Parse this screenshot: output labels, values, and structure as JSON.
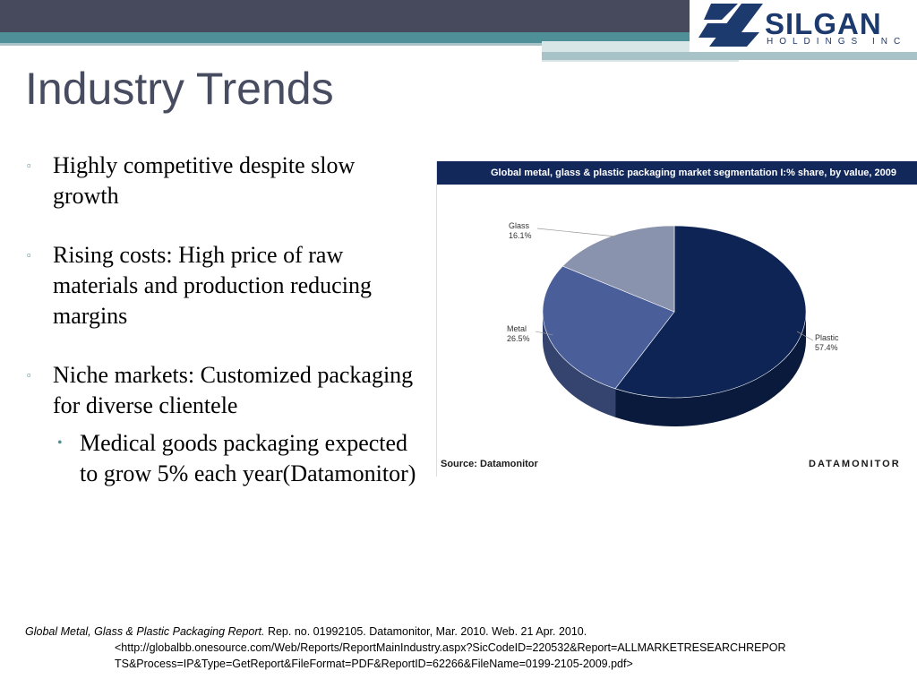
{
  "header": {
    "logo_text": "SILGAN",
    "logo_sub": "HOLDINGS INC",
    "accent": "#4f8f97",
    "bar": "#464a5c"
  },
  "slide": {
    "title": "Industry Trends",
    "bullets": [
      "Highly competitive despite slow growth",
      "Rising costs: High price of raw materials and production reducing margins",
      "Niche markets: Customized packaging for diverse clientele"
    ],
    "sub_bullets": [
      "Medical goods packaging expected to grow 5% each year(Datamonitor)"
    ]
  },
  "chart_data": {
    "type": "pie",
    "title": "Global metal, glass & plastic packaging market segmentation I:% share, by value, 2009",
    "categories": [
      "Plastic",
      "Metal",
      "Glass"
    ],
    "values": [
      57.4,
      26.5,
      16.1
    ],
    "value_labels": [
      "57.4%",
      "26.5%",
      "16.1%"
    ],
    "colors": [
      "#0d2454",
      "#4a5f9a",
      "#8a93ad"
    ],
    "source": "Source: Datamonitor",
    "brand": "DATAMONITOR"
  },
  "footnote": {
    "title": "Global Metal, Glass & Plastic Packaging Report.",
    "line1": " Rep. no. 01992105. Datamonitor, Mar. 2010. Web. 21 Apr. 2010.",
    "line2": "<http://globalbb.onesource.com/Web/Reports/ReportMainIndustry.aspx?SicCodeID=220532&Report=ALLMARKETRESEARCHREPOR",
    "line3": "TS&Process=IP&Type=GetReport&FileFormat=PDF&ReportID=62266&FileName=0199-2105-2009.pdf>"
  }
}
